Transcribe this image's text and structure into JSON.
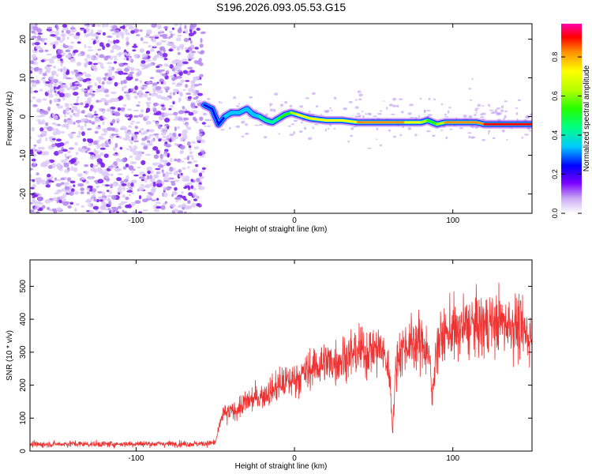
{
  "title": "S196.2026.093.05.53.G15",
  "chart_data": [
    {
      "type": "heatmap",
      "panel": "top",
      "xlabel": "Height of straight line (km)",
      "ylabel": "Frequency (Hz)",
      "xlim": [
        -167,
        150
      ],
      "ylim": [
        -25,
        24
      ],
      "xticks": [
        -100,
        0,
        100
      ],
      "yticks": [
        20,
        10,
        0,
        -10,
        -20
      ],
      "colorbar": {
        "label": "Normalized spectral amplitude",
        "range": [
          0.0,
          0.97
        ],
        "ticks": [
          0.0,
          0.2,
          0.4,
          0.6,
          0.8
        ]
      },
      "noise_region_x": [
        -167,
        -57
      ],
      "signal_track": {
        "x": [
          -57,
          -52,
          -48,
          -44,
          -40,
          -35,
          -30,
          -26,
          -22,
          -18,
          -14,
          -10,
          -6,
          -2,
          2,
          6,
          10,
          20,
          30,
          40,
          50,
          60,
          70,
          80,
          84,
          87,
          90,
          95,
          100,
          105,
          110,
          115,
          120,
          130,
          140,
          150
        ],
        "freq_hz": [
          3,
          2,
          -2,
          0,
          1,
          1,
          2,
          0.5,
          0,
          -1,
          -1.5,
          -0.5,
          0.5,
          1,
          0.5,
          0,
          -0.5,
          -1,
          -1,
          -1.5,
          -1.5,
          -1.5,
          -1.5,
          -1.5,
          -1,
          -1.5,
          -2,
          -1.5,
          -1.5,
          -1.5,
          -1.5,
          -1.5,
          -2,
          -2,
          -2,
          -2
        ],
        "amplitude": [
          0.3,
          0.35,
          0.3,
          0.35,
          0.35,
          0.4,
          0.4,
          0.4,
          0.45,
          0.45,
          0.5,
          0.5,
          0.6,
          0.7,
          0.75,
          0.75,
          0.8,
          0.8,
          0.8,
          0.85,
          0.85,
          0.85,
          0.85,
          0.8,
          0.6,
          0.5,
          0.6,
          0.85,
          0.9,
          0.9,
          0.9,
          0.9,
          0.95,
          0.95,
          0.95,
          0.95
        ]
      }
    },
    {
      "type": "line",
      "panel": "bottom",
      "xlabel": "Height of straight line (km)",
      "ylabel": "SNR (10 * v/v)",
      "xlim": [
        -167,
        150
      ],
      "ylim": [
        0,
        580
      ],
      "xticks": [
        -100,
        0,
        100
      ],
      "yticks": [
        0,
        100,
        200,
        300,
        400,
        500
      ],
      "color": "#ee3333",
      "series": [
        {
          "name": "SNR",
          "x": [
            -167,
            -140,
            -120,
            -100,
            -80,
            -60,
            -50,
            -47,
            -45,
            -43,
            -40,
            -35,
            -30,
            -25,
            -20,
            -15,
            -10,
            -5,
            0,
            5,
            10,
            15,
            20,
            25,
            30,
            35,
            40,
            45,
            50,
            55,
            60,
            62,
            64,
            66,
            70,
            75,
            80,
            85,
            87,
            89,
            92,
            95,
            98,
            100,
            102,
            105,
            110,
            115,
            120,
            125,
            130,
            135,
            140,
            145,
            150
          ],
          "values": [
            20,
            22,
            21,
            22,
            22,
            22,
            25,
            80,
            120,
            110,
            120,
            130,
            150,
            160,
            170,
            180,
            200,
            210,
            220,
            230,
            250,
            260,
            270,
            270,
            280,
            290,
            300,
            300,
            310,
            310,
            240,
            60,
            250,
            300,
            320,
            330,
            330,
            300,
            150,
            300,
            340,
            350,
            360,
            380,
            350,
            370,
            380,
            380,
            380,
            390,
            390,
            390,
            380,
            360,
            350
          ]
        }
      ]
    }
  ]
}
